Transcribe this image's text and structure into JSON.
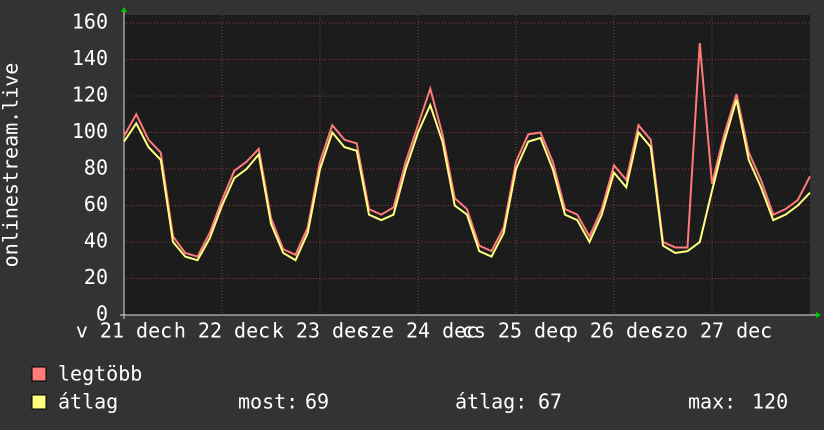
{
  "chart_data": {
    "type": "line",
    "ylabel": "onlinestream.live",
    "xlim": [
      0,
      7
    ],
    "xticks": [
      {
        "value": 0,
        "label": "v 21 dec"
      },
      {
        "value": 1,
        "label": "h 22 dec"
      },
      {
        "value": 2,
        "label": "k 23 dec"
      },
      {
        "value": 3,
        "label": "sze 24 dec"
      },
      {
        "value": 4,
        "label": "cs 25 dec"
      },
      {
        "value": 5,
        "label": "p 26 dec"
      },
      {
        "value": 6,
        "label": "szo 27 dec"
      }
    ],
    "ylim": [
      0,
      160
    ],
    "yticks": [
      0,
      20,
      40,
      60,
      80,
      100,
      120,
      140,
      160
    ],
    "grid": true,
    "x": [
      0,
      0.125,
      0.25,
      0.375,
      0.5,
      0.625,
      0.75,
      0.875,
      1,
      1.125,
      1.25,
      1.375,
      1.5,
      1.625,
      1.75,
      1.875,
      2,
      2.125,
      2.25,
      2.375,
      2.5,
      2.625,
      2.75,
      2.875,
      3,
      3.125,
      3.25,
      3.375,
      3.5,
      3.625,
      3.75,
      3.875,
      4,
      4.125,
      4.25,
      4.375,
      4.5,
      4.625,
      4.75,
      4.875,
      5,
      5.125,
      5.25,
      5.375,
      5.5,
      5.625,
      5.75,
      5.875,
      6,
      6.125,
      6.25,
      6.375,
      6.5,
      6.625,
      6.75,
      6.875,
      7
    ],
    "series": [
      {
        "name": "legtöbb",
        "color": "#ff7a7a",
        "values": [
          98,
          110,
          96,
          89,
          43,
          34,
          32,
          45,
          63,
          79,
          84,
          91,
          53,
          36,
          33,
          48,
          84,
          104,
          96,
          94,
          58,
          55,
          59,
          84,
          104,
          124,
          99,
          64,
          58,
          38,
          35,
          48,
          84,
          99,
          100,
          84,
          58,
          55,
          43,
          58,
          82,
          74,
          104,
          96,
          40,
          37,
          37,
          149,
          72,
          99,
          121,
          89,
          74,
          55,
          58,
          63,
          76
        ]
      },
      {
        "name": "átlag",
        "color": "#ffff80",
        "values": [
          95,
          105,
          92,
          85,
          40,
          32,
          30,
          42,
          60,
          75,
          80,
          88,
          50,
          34,
          30,
          45,
          80,
          100,
          92,
          90,
          55,
          52,
          55,
          80,
          100,
          115,
          95,
          60,
          55,
          35,
          32,
          45,
          80,
          95,
          97,
          80,
          55,
          52,
          40,
          55,
          78,
          70,
          100,
          92,
          38,
          34,
          35,
          40,
          68,
          95,
          118,
          85,
          70,
          52,
          55,
          60,
          67
        ]
      }
    ],
    "stats": [
      {
        "label": "most:",
        "value": 69
      },
      {
        "label": "átlag:",
        "value": 67
      },
      {
        "label": "max:",
        "value": 120
      }
    ]
  }
}
